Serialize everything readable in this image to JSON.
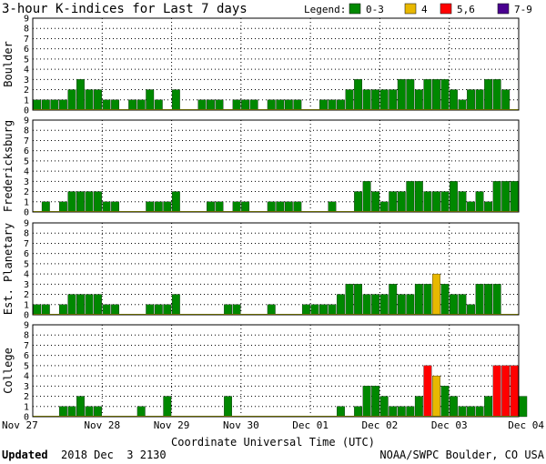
{
  "chart_data": {
    "type": "bar",
    "title": "3-hour K-indices for Last 7 days",
    "legend": {
      "label": "Legend:",
      "items": [
        {
          "label": "0-3",
          "color": "#008800"
        },
        {
          "label": "4",
          "color": "#e8b800"
        },
        {
          "label": "5,6",
          "color": "#ff0000"
        },
        {
          "label": "7-9",
          "color": "#4a0090"
        }
      ]
    },
    "xlabel": "Coordinate Universal Time (UTC)",
    "x_ticks": [
      "Nov 27",
      "Nov 28",
      "Nov 29",
      "Nov 30",
      "Dec 01",
      "Dec 02",
      "Dec 03",
      "Dec 04"
    ],
    "y_ticks": [
      "0",
      "1",
      "2",
      "3",
      "4",
      "5",
      "6",
      "7",
      "8",
      "9"
    ],
    "ylim": [
      0,
      9
    ],
    "bars_per_day": 8,
    "grid": true,
    "panels": [
      {
        "name": "Boulder",
        "values": [
          1,
          1,
          1,
          1,
          2,
          3,
          2,
          2,
          1,
          1,
          0,
          1,
          1,
          2,
          1,
          0,
          2,
          0,
          0,
          1,
          1,
          1,
          0,
          1,
          1,
          1,
          0,
          1,
          1,
          1,
          1,
          0,
          0,
          1,
          1,
          1,
          2,
          3,
          2,
          2,
          2,
          2,
          3,
          3,
          2,
          3,
          3,
          3,
          2,
          1,
          2,
          2,
          3,
          3,
          2,
          0
        ]
      },
      {
        "name": "Fredericksburg",
        "values": [
          0,
          1,
          0,
          1,
          2,
          2,
          2,
          2,
          1,
          1,
          0,
          0,
          0,
          1,
          1,
          1,
          2,
          0,
          0,
          0,
          1,
          1,
          0,
          1,
          1,
          0,
          0,
          1,
          1,
          1,
          1,
          0,
          0,
          0,
          1,
          0,
          0,
          2,
          3,
          2,
          1,
          2,
          2,
          3,
          3,
          2,
          2,
          2,
          3,
          2,
          1,
          2,
          1,
          3,
          3,
          3
        ]
      },
      {
        "name": "Est. Planetary",
        "values": [
          1,
          1,
          0,
          1,
          2,
          2,
          2,
          2,
          1,
          1,
          0,
          0,
          0,
          1,
          1,
          1,
          2,
          0,
          0,
          0,
          0,
          0,
          1,
          1,
          0,
          0,
          0,
          1,
          0,
          0,
          0,
          1,
          1,
          1,
          1,
          2,
          3,
          3,
          2,
          2,
          2,
          3,
          2,
          2,
          3,
          3,
          4,
          3,
          2,
          2,
          1,
          3,
          3,
          3
        ]
      },
      {
        "name": "College",
        "values": [
          0,
          0,
          0,
          1,
          1,
          2,
          1,
          1,
          0,
          0,
          0,
          0,
          1,
          0,
          0,
          2,
          0,
          0,
          0,
          0,
          0,
          0,
          2,
          0,
          0,
          0,
          0,
          0,
          0,
          0,
          0,
          0,
          0,
          0,
          0,
          1,
          0,
          1,
          3,
          3,
          2,
          1,
          1,
          1,
          2,
          5,
          4,
          3,
          2,
          1,
          1,
          1,
          2,
          5,
          5,
          5,
          2,
          0
        ]
      }
    ]
  },
  "footer": {
    "updated_label": "Updated",
    "updated_value": "2018 Dec  3 2130",
    "credit": "NOAA/SWPC Boulder, CO USA"
  }
}
